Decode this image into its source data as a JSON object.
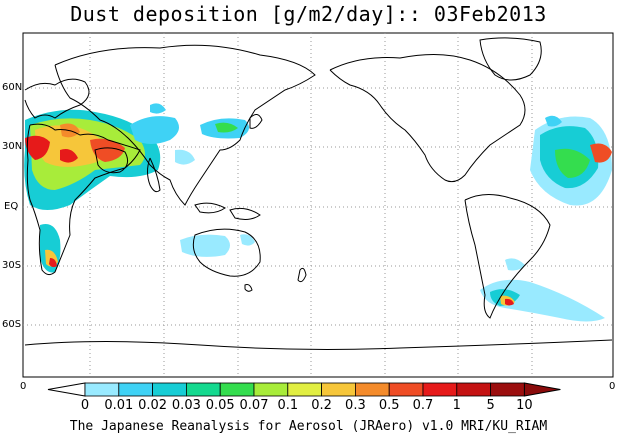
{
  "title": "Dust deposition [g/m2/day]:: 03Feb2013",
  "latitude_labels": [
    "60N",
    "30N",
    "EQ",
    "30S",
    "60S"
  ],
  "edge_labels": {
    "left": "0",
    "right": "0"
  },
  "colorbar": {
    "ticks": [
      "0",
      "0.01",
      "0.02",
      "0.03",
      "0.05",
      "0.07",
      "0.1",
      "0.2",
      "0.3",
      "0.5",
      "0.7",
      "1",
      "5",
      "10"
    ],
    "colors": [
      "#ffffff",
      "#99eaff",
      "#3fd2f5",
      "#17cdd5",
      "#14d98f",
      "#34dd4e",
      "#a8ec3a",
      "#e1ee42",
      "#f6c63a",
      "#f48b2b",
      "#ef4d25",
      "#e61a1a",
      "#c41212",
      "#9b0e0e"
    ],
    "arrow_color": "#8a0b0b"
  },
  "credit": "The Japanese Reanalysis for Aerosol (JRAero) v1.0 MRI/KU_RIAM"
}
